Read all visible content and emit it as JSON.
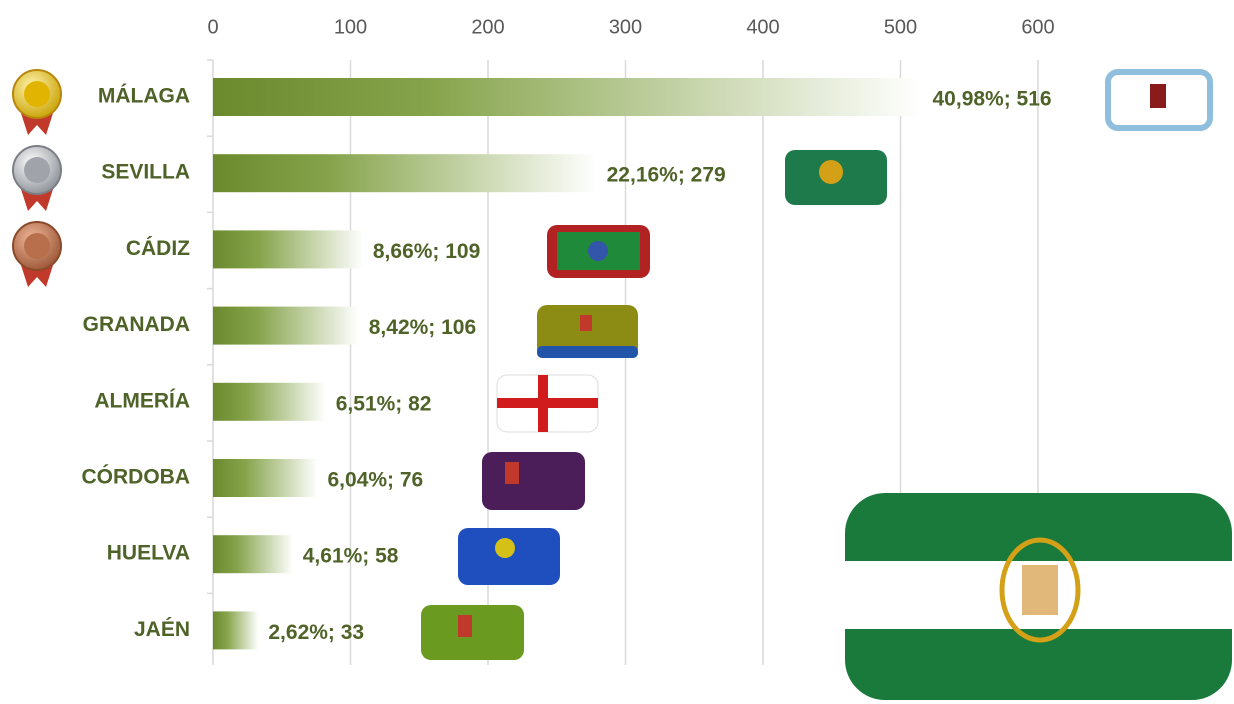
{
  "chart_data": {
    "type": "bar",
    "orientation": "horizontal",
    "categories": [
      "MÁLAGA",
      "SEVILLA",
      "CÁDIZ",
      "GRANADA",
      "ALMERÍA",
      "CÓRDOBA",
      "HUELVA",
      "JAÉN"
    ],
    "values": [
      516,
      279,
      109,
      106,
      82,
      76,
      58,
      33
    ],
    "value_labels": [
      "40,98%; 516",
      "22,16%; 279",
      "8,66%; 109",
      "8,42%; 106",
      "6,51%; 82",
      "6,04%; 76",
      "4,61%; 58",
      "2,62%; 33"
    ],
    "color": "#6b8a2e",
    "xlim": [
      0,
      700
    ],
    "xticks": [
      0,
      100,
      200,
      300,
      400,
      500,
      600
    ],
    "grid": true
  }
}
